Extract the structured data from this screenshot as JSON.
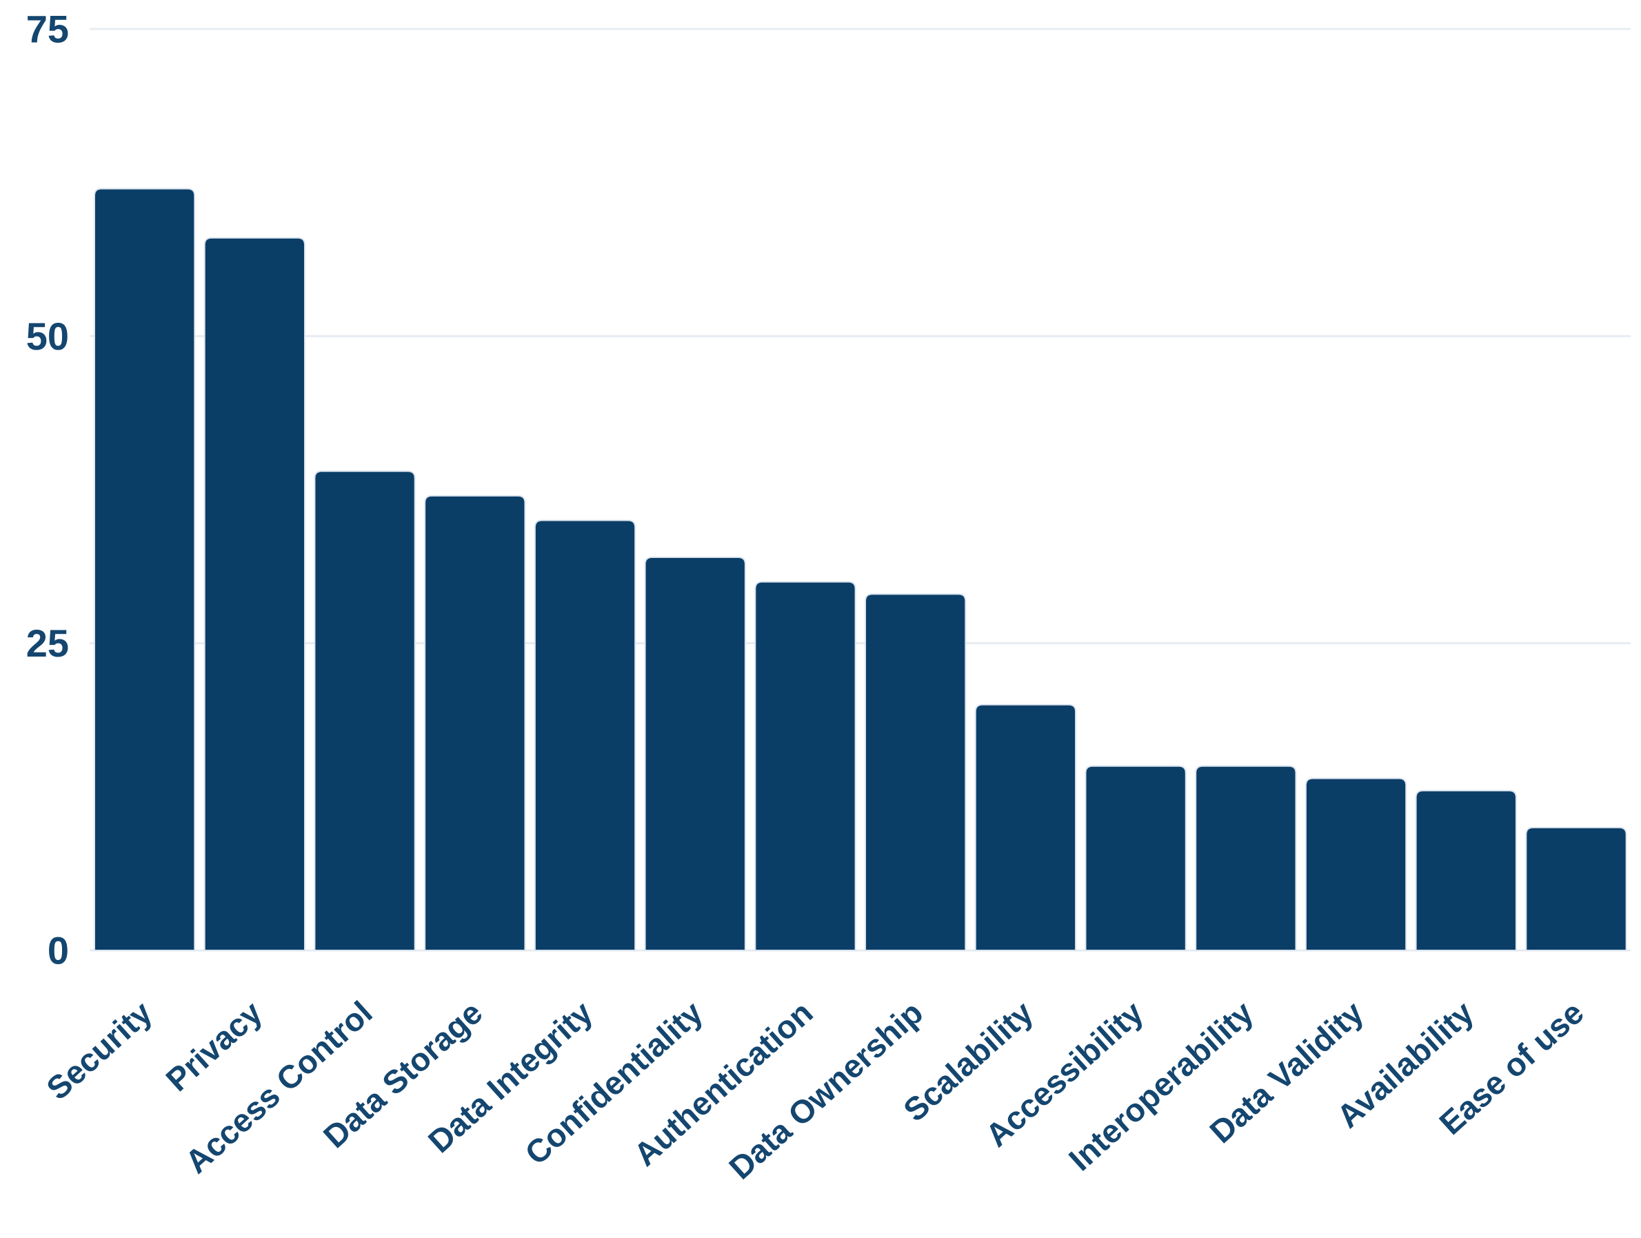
{
  "chart_data": {
    "type": "bar",
    "categories": [
      "Security",
      "Privacy",
      "Access Control",
      "Data Storage",
      "Data Integrity",
      "Confidentiality",
      "Authentication",
      "Data Ownership",
      "Scalability",
      "Accessibility",
      "Interoperability",
      "Data Validity",
      "Availability",
      "Ease of use"
    ],
    "values": [
      62,
      58,
      39,
      37,
      35,
      32,
      30,
      29,
      20,
      15,
      15,
      14,
      13,
      10
    ],
    "title": "",
    "xlabel": "",
    "ylabel": "",
    "ylim": [
      0,
      75
    ],
    "yticks": [
      0,
      25,
      50,
      75
    ],
    "ytick_labels": [
      "0",
      "25",
      "50",
      "75"
    ],
    "grid": true,
    "legend_position": "none",
    "x_tick_rotation_deg": -42,
    "colors": {
      "bar_fill": "#0b3e67",
      "bar_outline": "#dce4ee",
      "tick_label": "#14466f",
      "gridline": "#e7ecf2",
      "background": "#ffffff"
    }
  }
}
